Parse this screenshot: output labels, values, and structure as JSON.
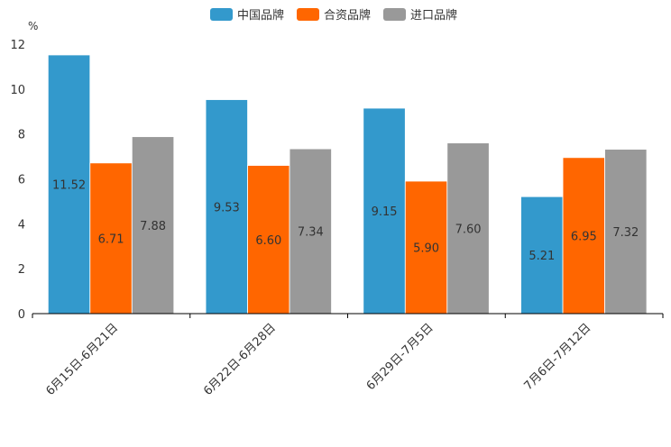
{
  "chart_data": {
    "type": "bar",
    "title": "",
    "xlabel": "",
    "ylabel": "%",
    "ylim": [
      0,
      12
    ],
    "yticks": [
      0,
      2,
      4,
      6,
      8,
      10,
      12
    ],
    "grid": false,
    "legend_position": "top-center",
    "categories": [
      "6月15日-6月21日",
      "6月22日-6月28日",
      "6月29日-7月5日",
      "7月6日-7月12日"
    ],
    "series": [
      {
        "name": "中国品牌",
        "color": "#3399cc",
        "values": [
          11.52,
          9.53,
          9.15,
          5.21
        ],
        "labels": [
          "11.52",
          "9.53",
          "9.15",
          "5.21"
        ]
      },
      {
        "name": "合资品牌",
        "color": "#ff6600",
        "values": [
          6.71,
          6.6,
          5.9,
          6.95
        ],
        "labels": [
          "6.71",
          "6.60",
          "5.90",
          "6.95"
        ]
      },
      {
        "name": "进口品牌",
        "color": "#999999",
        "values": [
          7.88,
          7.34,
          7.6,
          7.32
        ],
        "labels": [
          "7.88",
          "7.34",
          "7.60",
          "7.32"
        ]
      }
    ]
  }
}
